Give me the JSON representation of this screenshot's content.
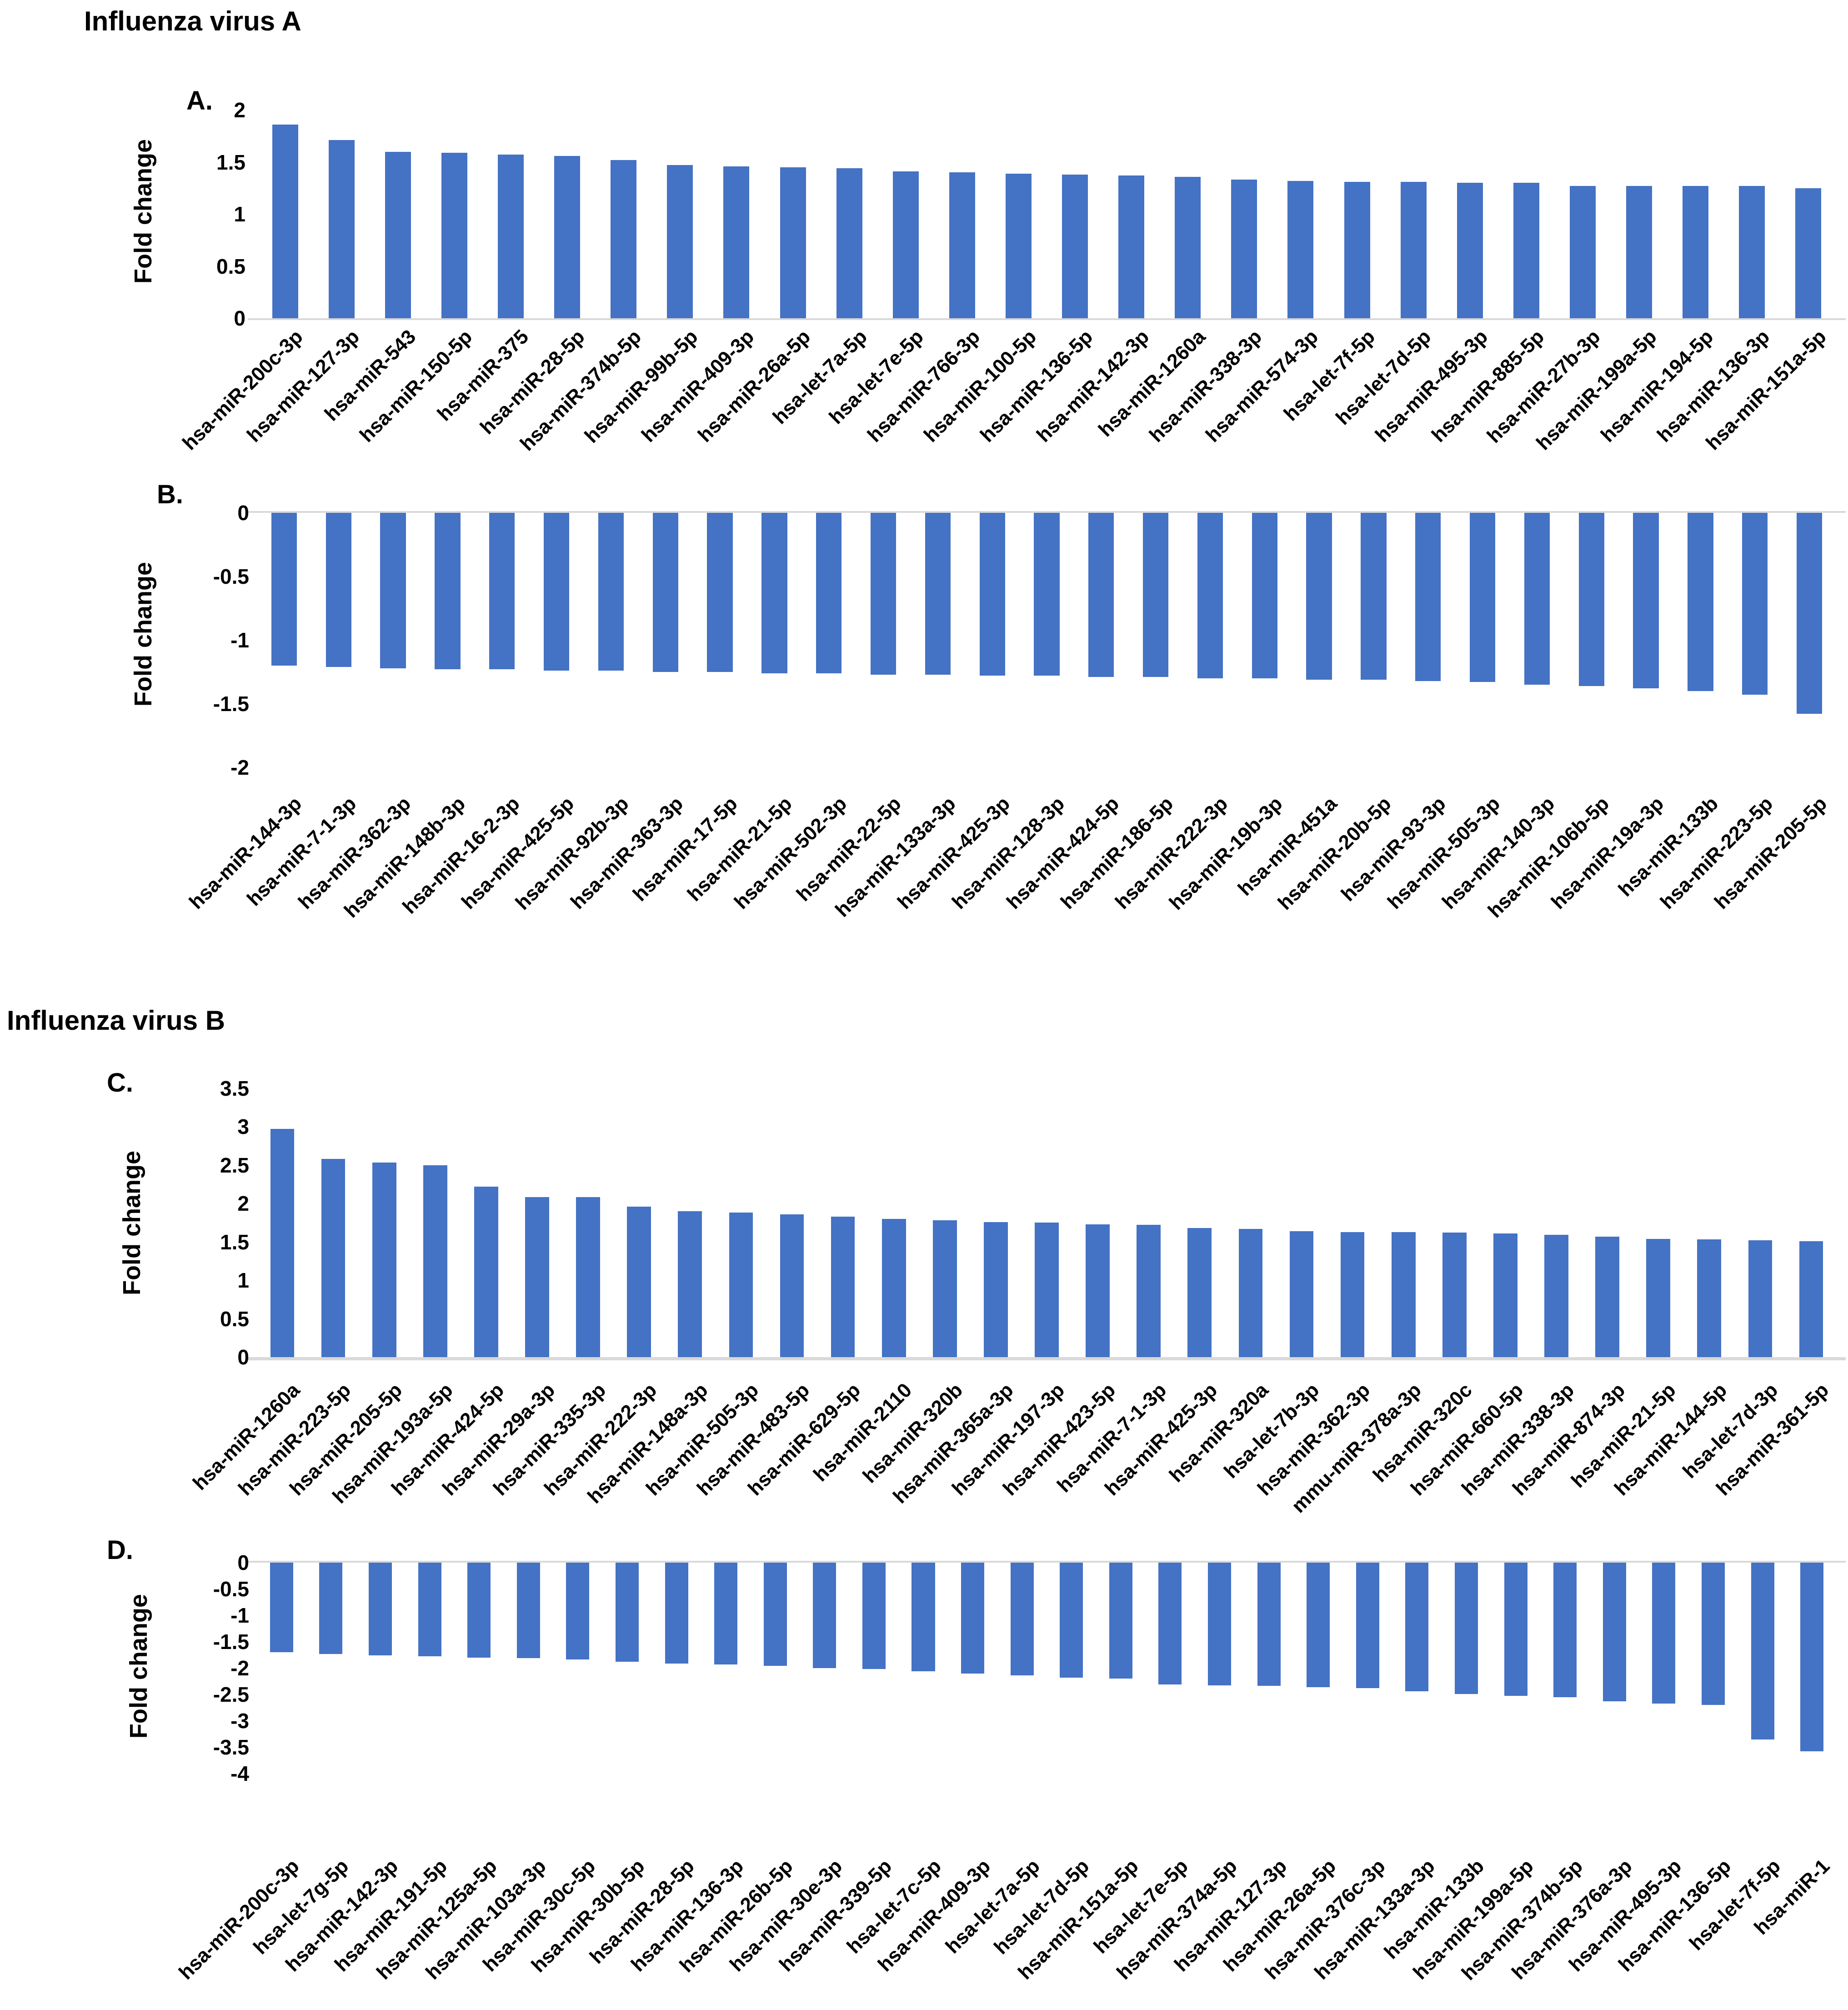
{
  "page": {
    "influenza_a_title": "Influenza virus A",
    "influenza_b_title": "Influenza virus B",
    "bar_color": "#4472C4",
    "baseline_color": "#d9d9d9"
  },
  "chart_data": [
    {
      "id": "A",
      "type": "bar",
      "section": "Influenza virus A",
      "panel_label": "A.",
      "ylabel": "Fold change",
      "xlabel": "",
      "ylim": [
        0,
        2
      ],
      "grid": false,
      "legend": "none",
      "yticks": [
        {
          "label": "2",
          "value": 2
        },
        {
          "label": "1.5",
          "value": 1.5
        },
        {
          "label": "1",
          "value": 1
        },
        {
          "label": "0.5",
          "value": 0.5
        },
        {
          "label": "0",
          "value": 0
        }
      ],
      "categories": [
        "hsa-miR-200c-3p",
        "hsa-miR-127-3p",
        "hsa-miR-543",
        "hsa-miR-150-5p",
        "hsa-miR-375",
        "hsa-miR-28-5p",
        "hsa-miR-374b-5p",
        "hsa-miR-99b-5p",
        "hsa-miR-409-3p",
        "hsa-miR-26a-5p",
        "hsa-let-7a-5p",
        "hsa-let-7e-5p",
        "hsa-miR-766-3p",
        "hsa-miR-100-5p",
        "hsa-miR-136-5p",
        "hsa-miR-142-3p",
        "hsa-miR-1260a",
        "hsa-miR-338-3p",
        "hsa-miR-574-3p",
        "hsa-let-7f-5p",
        "hsa-let-7d-5p",
        "hsa-miR-495-3p",
        "hsa-miR-885-5p",
        "hsa-miR-27b-3p",
        "hsa-miR-199a-5p",
        "hsa-miR-194-5p",
        "hsa-miR-136-3p",
        "hsa-miR-151a-5p"
      ],
      "values": [
        1.86,
        1.71,
        1.6,
        1.59,
        1.57,
        1.56,
        1.52,
        1.47,
        1.46,
        1.45,
        1.44,
        1.41,
        1.4,
        1.39,
        1.38,
        1.37,
        1.36,
        1.33,
        1.32,
        1.31,
        1.31,
        1.3,
        1.3,
        1.27,
        1.27,
        1.27,
        1.27,
        1.25
      ]
    },
    {
      "id": "B",
      "type": "bar",
      "section": "Influenza virus A",
      "panel_label": "B.",
      "ylabel": "Fold change",
      "xlabel": "",
      "ylim": [
        -2,
        0
      ],
      "grid": false,
      "legend": "none",
      "yticks": [
        {
          "label": "0",
          "value": 0
        },
        {
          "label": "-0.5",
          "value": -0.5
        },
        {
          "label": "-1",
          "value": -1
        },
        {
          "label": "-1.5",
          "value": -1.5
        },
        {
          "label": "-2",
          "value": -2
        }
      ],
      "categories": [
        "hsa-miR-144-3p",
        "hsa-miR-7-1-3p",
        "hsa-miR-362-3p",
        "hsa-miR-148b-3p",
        "hsa-miR-16-2-3p",
        "hsa-miR-425-5p",
        "hsa-miR-92b-3p",
        "hsa-miR-363-3p",
        "hsa-miR-17-5p",
        "hsa-miR-21-5p",
        "hsa-miR-502-3p",
        "hsa-miR-22-5p",
        "hsa-miR-133a-3p",
        "hsa-miR-425-3p",
        "hsa-miR-128-3p",
        "hsa-miR-424-5p",
        "hsa-miR-186-5p",
        "hsa-miR-222-3p",
        "hsa-miR-19b-3p",
        "hsa-miR-451a",
        "hsa-miR-20b-5p",
        "hsa-miR-93-3p",
        "hsa-miR-505-3p",
        "hsa-miR-140-3p",
        "hsa-miR-106b-5p",
        "hsa-miR-19a-3p",
        "hsa-miR-133b",
        "hsa-miR-223-5p",
        "hsa-miR-205-5p"
      ],
      "values": [
        -1.2,
        -1.21,
        -1.22,
        -1.23,
        -1.23,
        -1.24,
        -1.24,
        -1.25,
        -1.25,
        -1.26,
        -1.26,
        -1.27,
        -1.27,
        -1.28,
        -1.28,
        -1.29,
        -1.29,
        -1.3,
        -1.3,
        -1.31,
        -1.31,
        -1.32,
        -1.33,
        -1.35,
        -1.36,
        -1.38,
        -1.4,
        -1.43,
        -1.58
      ]
    },
    {
      "id": "C",
      "type": "bar",
      "section": "Influenza virus B",
      "panel_label": "C.",
      "ylabel": "Fold change",
      "xlabel": "",
      "ylim": [
        0,
        3.5
      ],
      "grid": false,
      "legend": "none",
      "yticks": [
        {
          "label": "3.5",
          "value": 3.5
        },
        {
          "label": "3",
          "value": 3
        },
        {
          "label": "2.5",
          "value": 2.5
        },
        {
          "label": "2",
          "value": 2
        },
        {
          "label": "1.5",
          "value": 1.5
        },
        {
          "label": "1",
          "value": 1
        },
        {
          "label": "0.5",
          "value": 0.5
        },
        {
          "label": "0",
          "value": 0
        }
      ],
      "categories": [
        "hsa-miR-1260a",
        "hsa-miR-223-5p",
        "hsa-miR-205-5p",
        "hsa-miR-193a-5p",
        "hsa-miR-424-5p",
        "hsa-miR-29a-3p",
        "hsa-miR-335-3p",
        "hsa-miR-222-3p",
        "hsa-miR-148a-3p",
        "hsa-miR-505-3p",
        "hsa-miR-483-5p",
        "hsa-miR-629-5p",
        "hsa-miR-2110",
        "hsa-miR-320b",
        "hsa-miR-365a-3p",
        "hsa-miR-197-3p",
        "hsa-miR-423-5p",
        "hsa-miR-7-1-3p",
        "hsa-miR-425-3p",
        "hsa-miR-320a",
        "hsa-let-7b-3p",
        "hsa-miR-362-3p",
        "mmu-miR-378a-3p",
        "hsa-miR-320c",
        "hsa-miR-660-5p",
        "hsa-miR-338-3p",
        "hsa-miR-874-3p",
        "hsa-miR-21-5p",
        "hsa-miR-144-5p",
        "hsa-let-7d-3p",
        "hsa-miR-361-5p"
      ],
      "values": [
        2.97,
        2.58,
        2.53,
        2.5,
        2.22,
        2.08,
        2.08,
        1.96,
        1.9,
        1.88,
        1.86,
        1.83,
        1.8,
        1.78,
        1.76,
        1.75,
        1.73,
        1.72,
        1.68,
        1.67,
        1.64,
        1.63,
        1.63,
        1.62,
        1.61,
        1.59,
        1.57,
        1.54,
        1.53,
        1.52,
        1.51
      ]
    },
    {
      "id": "D",
      "type": "bar",
      "section": "Influenza virus B",
      "panel_label": "D.",
      "ylabel": "Fold change",
      "xlabel": "",
      "ylim": [
        -4,
        0
      ],
      "grid": false,
      "legend": "none",
      "yticks": [
        {
          "label": "0",
          "value": 0
        },
        {
          "label": "-0.5",
          "value": -0.5
        },
        {
          "label": "-1",
          "value": -1
        },
        {
          "label": "-1.5",
          "value": -1.5
        },
        {
          "label": "-2",
          "value": -2
        },
        {
          "label": "-2.5",
          "value": -2.5
        },
        {
          "label": "-3",
          "value": -3
        },
        {
          "label": "-3.5",
          "value": -3.5
        },
        {
          "label": "-4",
          "value": -4
        }
      ],
      "categories": [
        "hsa-miR-200c-3p",
        "hsa-let-7g-5p",
        "hsa-miR-142-3p",
        "hsa-miR-191-5p",
        "hsa-miR-125a-5p",
        "hsa-miR-103a-3p",
        "hsa-miR-30c-5p",
        "hsa-miR-30b-5p",
        "hsa-miR-28-5p",
        "hsa-miR-136-3p",
        "hsa-miR-26b-5p",
        "hsa-miR-30e-3p",
        "hsa-miR-339-5p",
        "hsa-let-7c-5p",
        "hsa-miR-409-3p",
        "hsa-let-7a-5p",
        "hsa-let-7d-5p",
        "hsa-miR-151a-5p",
        "hsa-let-7e-5p",
        "hsa-miR-374a-5p",
        "hsa-miR-127-3p",
        "hsa-miR-26a-5p",
        "hsa-miR-376c-3p",
        "hsa-miR-133a-3p",
        "hsa-miR-133b",
        "hsa-miR-199a-5p",
        "hsa-miR-374b-5p",
        "hsa-miR-376a-3p",
        "hsa-miR-495-3p",
        "hsa-miR-136-5p",
        "hsa-let-7f-5p",
        "hsa-miR-1"
      ],
      "values": [
        -1.7,
        -1.73,
        -1.76,
        -1.78,
        -1.8,
        -1.81,
        -1.84,
        -1.88,
        -1.91,
        -1.93,
        -1.96,
        -2.0,
        -2.02,
        -2.06,
        -2.1,
        -2.14,
        -2.18,
        -2.2,
        -2.31,
        -2.33,
        -2.34,
        -2.36,
        -2.38,
        -2.44,
        -2.49,
        -2.53,
        -2.55,
        -2.63,
        -2.67,
        -2.7,
        -3.35,
        -3.58
      ]
    }
  ]
}
